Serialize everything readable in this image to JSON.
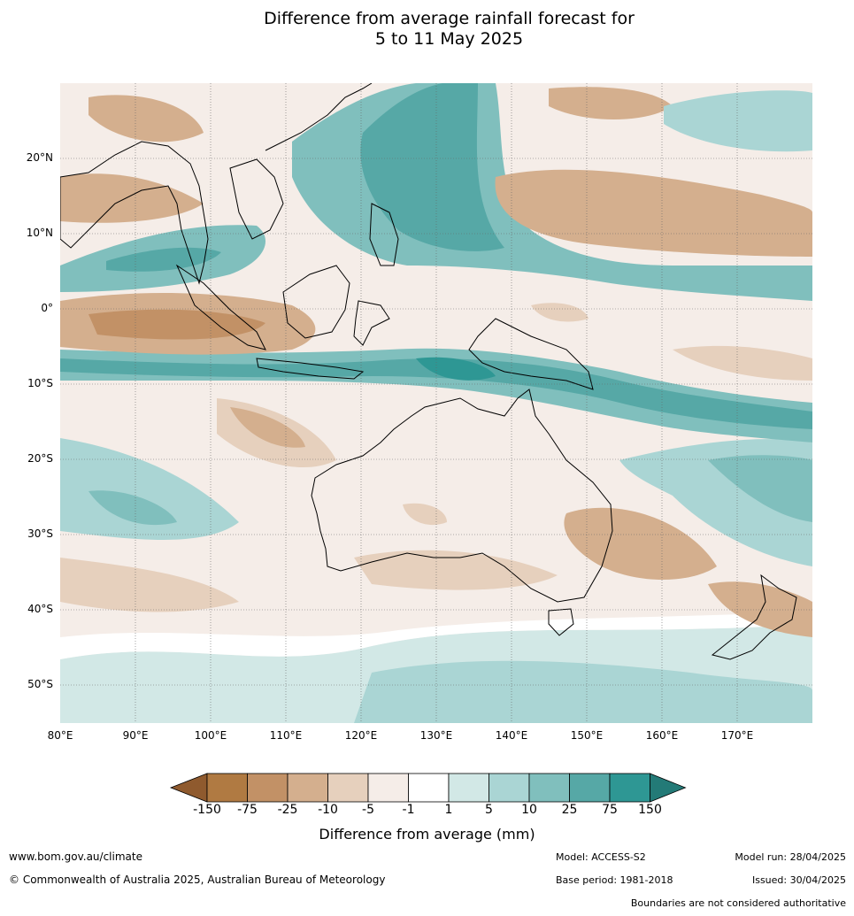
{
  "title_line1": "Difference from average rainfall forecast for",
  "title_line2": "5 to 11 May 2025",
  "map": {
    "lon_labels": [
      "80°E",
      "90°E",
      "100°E",
      "110°E",
      "120°E",
      "130°E",
      "140°E",
      "150°E",
      "160°E",
      "170°E"
    ],
    "lat_labels": [
      "20°N",
      "10°N",
      "0°",
      "10°S",
      "20°S",
      "30°S",
      "40°S",
      "50°S"
    ],
    "lon_range": [
      80,
      180
    ],
    "lat_range": [
      -55,
      30
    ],
    "grid": true
  },
  "colorbar": {
    "ticks": [
      "-150",
      "-75",
      "-25",
      "-10",
      "-5",
      "-1",
      "1",
      "5",
      "10",
      "25",
      "75",
      "150"
    ],
    "colors": [
      "#8f5a2e",
      "#b07a42",
      "#c29166",
      "#d4af8e",
      "#e6d0bd",
      "#f5ede8",
      "#ffffff",
      "#d2e8e6",
      "#aad5d4",
      "#80bfbd",
      "#56a8a6",
      "#2e9794",
      "#237a77"
    ],
    "label": "Difference from average (mm)"
  },
  "footer": {
    "url": "www.bom.gov.au/climate",
    "copyright": "© Commonwealth of Australia 2025, Australian Bureau of Meteorology",
    "model": "Model: ACCESS-S2",
    "base_period": "Base period: 1981-2018",
    "model_run": "Model run: 28/04/2025",
    "issued": "Issued: 30/04/2025",
    "disclaimer": "Boundaries are not considered authoritative"
  }
}
